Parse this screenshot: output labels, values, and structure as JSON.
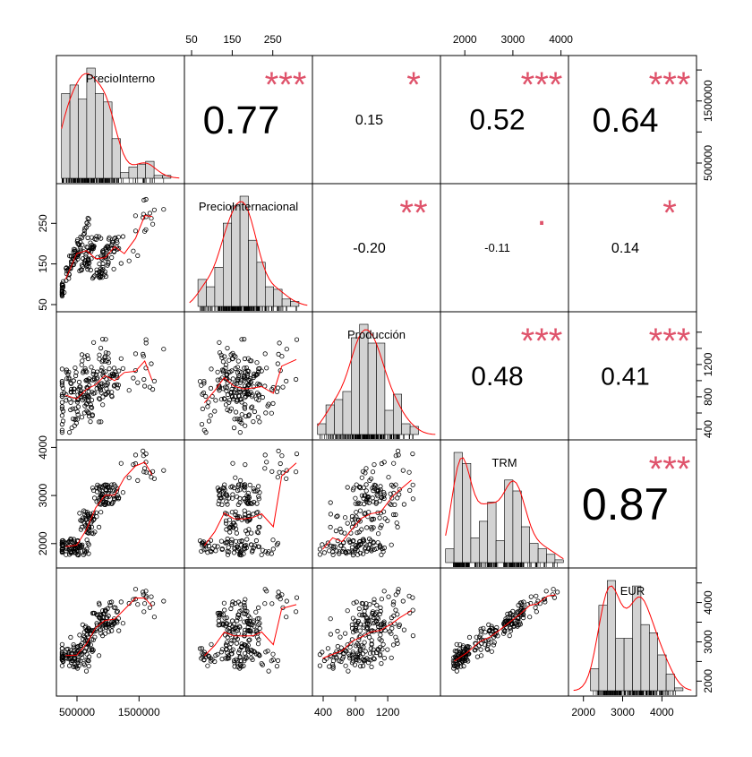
{
  "chart_data": {
    "type": "scatter",
    "title": "",
    "variables": [
      {
        "name": "PrecioInterno",
        "min": 250000,
        "max": 2150000,
        "tick_values": [
          500000,
          1500000
        ],
        "tick_labels": [
          "500000",
          "1500000"
        ],
        "right_tick_values": [
          500000,
          1000000,
          1500000,
          2000000
        ],
        "right_tick_labels": [
          "500000",
          "",
          "1500000",
          ""
        ]
      },
      {
        "name": "PrecioInternacional",
        "min": 45,
        "max": 335,
        "tick_values": [
          50,
          150,
          250
        ],
        "tick_labels": [
          "50",
          "150",
          "250"
        ]
      },
      {
        "name": "Producción",
        "min": 330,
        "max": 1790,
        "tick_values": [
          400,
          800,
          1200
        ],
        "tick_labels": [
          "400",
          "800",
          "1200"
        ],
        "right_tick_values": [
          400,
          600,
          800,
          1000,
          1200,
          1400,
          1600
        ],
        "right_tick_labels": [
          "400",
          "",
          "800",
          "",
          "1200",
          "",
          ""
        ]
      },
      {
        "name": "TRM",
        "min": 1600,
        "max": 4050,
        "tick_values": [
          2000,
          3000,
          4000
        ],
        "tick_labels": [
          "2000",
          "3000",
          "4000"
        ]
      },
      {
        "name": "EUR",
        "min": 1750,
        "max": 4750,
        "tick_values": [
          2000,
          3000,
          4000
        ],
        "tick_labels": [
          "2000",
          "3000",
          "4000"
        ],
        "right_tick_values": [
          2000,
          2500,
          3000,
          3500,
          4000,
          4500
        ],
        "right_tick_labels": [
          "2000",
          "",
          "3000",
          "",
          "4000",
          ""
        ]
      }
    ],
    "correlations": [
      {
        "row": 0,
        "col": 1,
        "value": "0.77",
        "stars": "***",
        "size": 44
      },
      {
        "row": 0,
        "col": 2,
        "value": "0.15",
        "stars": "*",
        "size": 16
      },
      {
        "row": 0,
        "col": 3,
        "value": "0.52",
        "stars": "***",
        "size": 32
      },
      {
        "row": 0,
        "col": 4,
        "value": "0.64",
        "stars": "***",
        "size": 38
      },
      {
        "row": 1,
        "col": 2,
        "value": "-0.20",
        "stars": "**",
        "size": 16
      },
      {
        "row": 1,
        "col": 3,
        "value": "-0.11",
        "stars": ".",
        "size": 13
      },
      {
        "row": 1,
        "col": 4,
        "value": "0.14",
        "stars": "*",
        "size": 16
      },
      {
        "row": 2,
        "col": 3,
        "value": "0.48",
        "stars": "***",
        "size": 30
      },
      {
        "row": 2,
        "col": 4,
        "value": "0.41",
        "stars": "***",
        "size": 28
      },
      {
        "row": 3,
        "col": 4,
        "value": "0.87",
        "stars": "***",
        "size": 50
      }
    ],
    "sample_size": 220,
    "grid": false,
    "colors": {
      "points": "#000000",
      "smooth": "#ff0000",
      "stars": "#df536b",
      "bars": "#d3d3d3"
    }
  }
}
